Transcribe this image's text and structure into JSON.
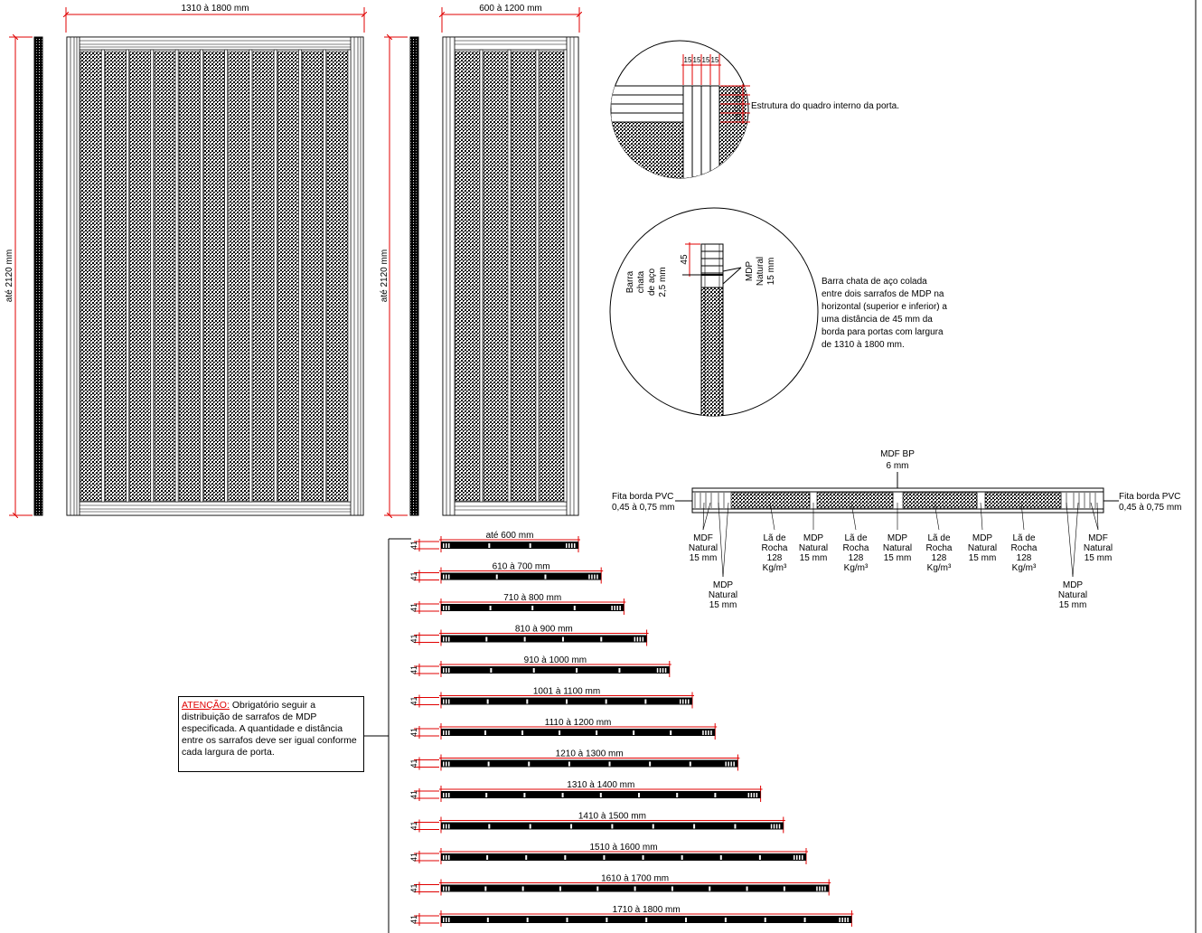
{
  "front_views": {
    "wide_width": "1310 à 1800 mm",
    "narrow_width": "600 à 1200 mm",
    "height": "até 2120 mm"
  },
  "details": {
    "frame_dims": [
      "15",
      "15",
      "15",
      "15"
    ],
    "frame_caption": "Estrutura do quadro interno da porta.",
    "bar_dim": "45",
    "bar_label": [
      "Barra",
      "chata",
      "de aço",
      "2,5 mm"
    ],
    "mdp_label": [
      "MDP",
      "Natural",
      "15 mm"
    ],
    "bar_caption": [
      "Barra chata de aço colada",
      "entre dois sarrafos de MDP na",
      "horizontal (superior e inferior) a",
      "uma distância de 45 mm da",
      "borda para portas com largura",
      "de 1310 à 1800 mm."
    ]
  },
  "section": {
    "top_label": [
      "MDF BP",
      "6 mm"
    ],
    "edge_left": [
      "Fita borda PVC",
      "0,45 à 0,75 mm"
    ],
    "edge_right": [
      "Fita borda PVC",
      "0,45 à 0,75 mm"
    ],
    "labels": [
      [
        "MDF",
        "Natural",
        "15 mm"
      ],
      [
        "MDP",
        "Natural",
        "15 mm"
      ],
      [
        "Lã de",
        "Rocha",
        "128",
        "Kg/m³"
      ],
      [
        "MDP",
        "Natural",
        "15 mm"
      ],
      [
        "Lã de",
        "Rocha",
        "128",
        "Kg/m³"
      ],
      [
        "MDP",
        "Natural",
        "15 mm"
      ],
      [
        "Lã de",
        "Rocha",
        "128",
        "Kg/m³"
      ],
      [
        "MDP",
        "Natural",
        "15 mm"
      ],
      [
        "Lã de",
        "Rocha",
        "128",
        "Kg/m³"
      ],
      [
        "MDP",
        "Natural",
        "15 mm"
      ],
      [
        "MDF",
        "Natural",
        "15 mm"
      ]
    ]
  },
  "width_sections": {
    "thickness": "41",
    "ranges": [
      "até 600 mm",
      "610 à 700 mm",
      "710 à 800 mm",
      "810 à 900 mm",
      "910 à 1000 mm",
      "1001 à 1100 mm",
      "1110 à 1200 mm",
      "1210 à 1300 mm",
      "1310 à 1400 mm",
      "1410 à 1500 mm",
      "1510 à 1600 mm",
      "1610 à 1700 mm",
      "1710 à 1800 mm"
    ]
  },
  "note": {
    "attention": "ATENÇÃO:",
    "text": "Obrigatório seguir a distribuição de sarrafos de MDP especificada. A quantidade e distância entre os sarrafos deve ser igual conforme cada largura de porta."
  }
}
